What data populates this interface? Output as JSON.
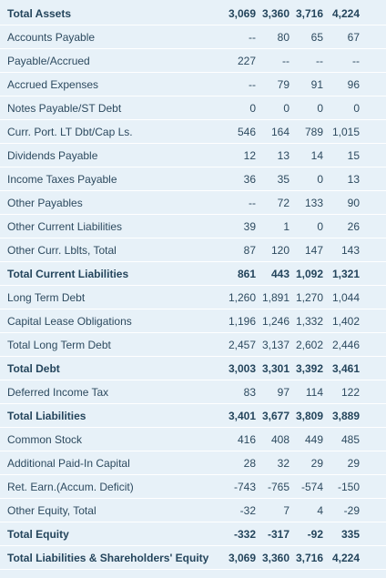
{
  "table": {
    "rows": [
      {
        "label": "Total Assets",
        "bold": true,
        "values": [
          "3,069",
          "3,360",
          "3,716",
          "4,224"
        ]
      },
      {
        "label": "Accounts Payable",
        "bold": false,
        "values": [
          "--",
          "80",
          "65",
          "67"
        ]
      },
      {
        "label": "Payable/Accrued",
        "bold": false,
        "values": [
          "227",
          "--",
          "--",
          "--"
        ]
      },
      {
        "label": "Accrued Expenses",
        "bold": false,
        "values": [
          "--",
          "79",
          "91",
          "96"
        ]
      },
      {
        "label": "Notes Payable/ST Debt",
        "bold": false,
        "values": [
          "0",
          "0",
          "0",
          "0"
        ]
      },
      {
        "label": "Curr. Port. LT Dbt/Cap Ls.",
        "bold": false,
        "values": [
          "546",
          "164",
          "789",
          "1,015"
        ]
      },
      {
        "label": "Dividends Payable",
        "bold": false,
        "values": [
          "12",
          "13",
          "14",
          "15"
        ]
      },
      {
        "label": "Income Taxes Payable",
        "bold": false,
        "values": [
          "36",
          "35",
          "0",
          "13"
        ]
      },
      {
        "label": "Other Payables",
        "bold": false,
        "values": [
          "--",
          "72",
          "133",
          "90"
        ]
      },
      {
        "label": "Other Current Liabilities",
        "bold": false,
        "values": [
          "39",
          "1",
          "0",
          "26"
        ]
      },
      {
        "label": "Other Curr. Lblts, Total",
        "bold": false,
        "values": [
          "87",
          "120",
          "147",
          "143"
        ]
      },
      {
        "label": "Total Current Liabilities",
        "bold": true,
        "values": [
          "861",
          "443",
          "1,092",
          "1,321"
        ]
      },
      {
        "label": "Long Term Debt",
        "bold": false,
        "values": [
          "1,260",
          "1,891",
          "1,270",
          "1,044"
        ]
      },
      {
        "label": "Capital Lease Obligations",
        "bold": false,
        "values": [
          "1,196",
          "1,246",
          "1,332",
          "1,402"
        ]
      },
      {
        "label": "Total Long Term Debt",
        "bold": false,
        "values": [
          "2,457",
          "3,137",
          "2,602",
          "2,446"
        ]
      },
      {
        "label": "Total Debt",
        "bold": true,
        "values": [
          "3,003",
          "3,301",
          "3,392",
          "3,461"
        ]
      },
      {
        "label": "Deferred Income Tax",
        "bold": false,
        "values": [
          "83",
          "97",
          "114",
          "122"
        ]
      },
      {
        "label": "Total Liabilities",
        "bold": true,
        "values": [
          "3,401",
          "3,677",
          "3,809",
          "3,889"
        ]
      },
      {
        "label": "Common Stock",
        "bold": false,
        "values": [
          "416",
          "408",
          "449",
          "485"
        ]
      },
      {
        "label": "Additional Paid-In Capital",
        "bold": false,
        "values": [
          "28",
          "32",
          "29",
          "29"
        ]
      },
      {
        "label": "Ret. Earn.(Accum. Deficit)",
        "bold": false,
        "values": [
          "-743",
          "-765",
          "-574",
          "-150"
        ]
      },
      {
        "label": "Other Equity, Total",
        "bold": false,
        "values": [
          "-32",
          "7",
          "4",
          "-29"
        ]
      },
      {
        "label": "Total Equity",
        "bold": true,
        "values": [
          "-332",
          "-317",
          "-92",
          "335"
        ]
      },
      {
        "label": "Total Liabilities & Shareholders' Equity",
        "bold": true,
        "values": [
          "3,069",
          "3,360",
          "3,716",
          "4,224"
        ]
      }
    ]
  },
  "colors": {
    "background": "#e7f1f8",
    "row_divider": "#ffffff",
    "text": "#2d4a5f"
  }
}
